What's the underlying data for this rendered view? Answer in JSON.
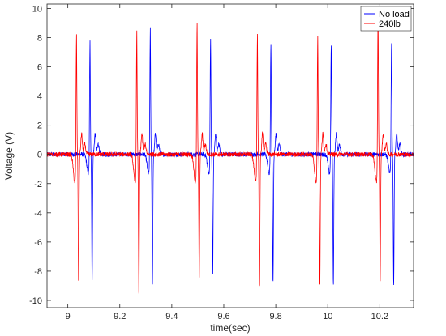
{
  "chart_data": {
    "type": "line",
    "title": "",
    "xlabel": "time(sec)",
    "ylabel": "Voltage (V)",
    "xlim": [
      8.92,
      10.33
    ],
    "ylim": [
      -10.5,
      10.3
    ],
    "x_ticks": [
      9,
      9.2,
      9.4,
      9.6,
      9.8,
      10,
      10.2
    ],
    "x_tick_labels": [
      "9",
      "9.2",
      "9.4",
      "9.6",
      "9.8",
      "10",
      "10.2"
    ],
    "y_ticks": [
      -10,
      -8,
      -6,
      -4,
      -2,
      0,
      2,
      4,
      6,
      8,
      10
    ],
    "y_tick_labels": [
      "-10",
      "-8",
      "-6",
      "-4",
      "-2",
      "0",
      "2",
      "4",
      "6",
      "8",
      "10"
    ],
    "grid": false,
    "legend_placement": "top-right",
    "period_sec": 0.232,
    "series": [
      {
        "name": "No load",
        "color": "#0000ff",
        "pulse_times": [
          9.085,
          9.317,
          9.549,
          9.781,
          10.013,
          10.245
        ],
        "peaks": [
          7.9,
          8.8,
          8.2,
          7.9,
          7.8,
          7.9
        ],
        "troughs": [
          -8.8,
          -9.0,
          -8.2,
          -8.8,
          -8.9,
          -8.9
        ],
        "precursor_dip": -1.3,
        "ringing_peak": 1.4,
        "noise_amplitude": 0.15
      },
      {
        "name": "240lb",
        "color": "#ff0000",
        "pulse_times": [
          9.033,
          9.265,
          9.497,
          9.729,
          9.961,
          10.193
        ],
        "peaks": [
          8.6,
          8.7,
          9.3,
          8.6,
          8.6,
          10.1
        ],
        "troughs": [
          -8.9,
          -9.8,
          -8.5,
          -9.1,
          -9.1,
          -8.9
        ],
        "precursor_dip": -1.9,
        "ringing_peak": 1.4,
        "noise_amplitude": 0.15
      }
    ]
  }
}
